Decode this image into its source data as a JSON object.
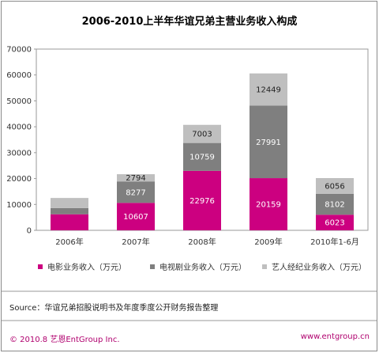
{
  "chart_data": {
    "type": "bar",
    "stacked": true,
    "title": "2006-2010上半年华谊兄弟主营业务收入构成",
    "categories": [
      "2006年",
      "2007年",
      "2008年",
      "2009年",
      "2010年1-6月"
    ],
    "series": [
      {
        "name": "电影业务收入（万元）",
        "color": "#cc0080",
        "values": [
          6200,
          10607,
          22976,
          20159,
          6023
        ],
        "labels": [
          "",
          "10607",
          "22976",
          "20159",
          "6023"
        ]
      },
      {
        "name": "电视剧业务收入（万元）",
        "color": "#7f7f7f",
        "values": [
          2400,
          8277,
          10759,
          27991,
          8102
        ],
        "labels": [
          "",
          "8277",
          "10759",
          "27991",
          "8102"
        ]
      },
      {
        "name": "艺人经纪业务收入（万元）",
        "color": "#bfbfbf",
        "values": [
          3900,
          2794,
          7003,
          12449,
          6056
        ],
        "labels": [
          "",
          "2794",
          "7003",
          "12449",
          "6056"
        ]
      }
    ],
    "ylim": [
      0,
      70000
    ],
    "yticks": [
      0,
      10000,
      20000,
      30000,
      40000,
      50000,
      60000,
      70000
    ],
    "legend_position": "bottom",
    "grid": false
  },
  "source": "Source：华谊兄弟招股说明书及年度季度公开财务报告整理",
  "footer": {
    "left": "© 2010.8 艺恩EntGroup Inc.",
    "right": "www.entgroup.cn"
  }
}
